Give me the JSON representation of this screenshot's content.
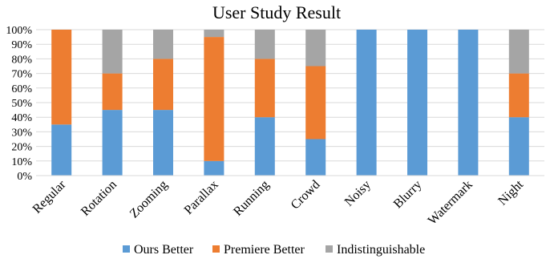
{
  "chart_data": {
    "type": "bar",
    "stacked": true,
    "title": "User Study Result",
    "xlabel": "",
    "ylabel": "",
    "categories": [
      "Regular",
      "Rotation",
      "Zooming",
      "Parallax",
      "Running",
      "Crowd",
      "Noisy",
      "Blurry",
      "Watermark",
      "Night"
    ],
    "series": [
      {
        "name": "Ours Better",
        "color": "#5B9BD5",
        "values": [
          35,
          45,
          45,
          10,
          40,
          25,
          100,
          100,
          100,
          40
        ]
      },
      {
        "name": "Premiere Better",
        "color": "#ED7D31",
        "values": [
          65,
          25,
          35,
          85,
          40,
          50,
          0,
          0,
          0,
          30
        ]
      },
      {
        "name": "Indistinguishable",
        "color": "#A5A5A5",
        "values": [
          0,
          30,
          20,
          5,
          20,
          25,
          0,
          0,
          0,
          30
        ]
      }
    ],
    "yticks": [
      "0%",
      "10%",
      "20%",
      "30%",
      "40%",
      "50%",
      "60%",
      "70%",
      "80%",
      "90%",
      "100%"
    ],
    "ylim": [
      0,
      100
    ],
    "grid": true,
    "legend_position": "bottom"
  }
}
